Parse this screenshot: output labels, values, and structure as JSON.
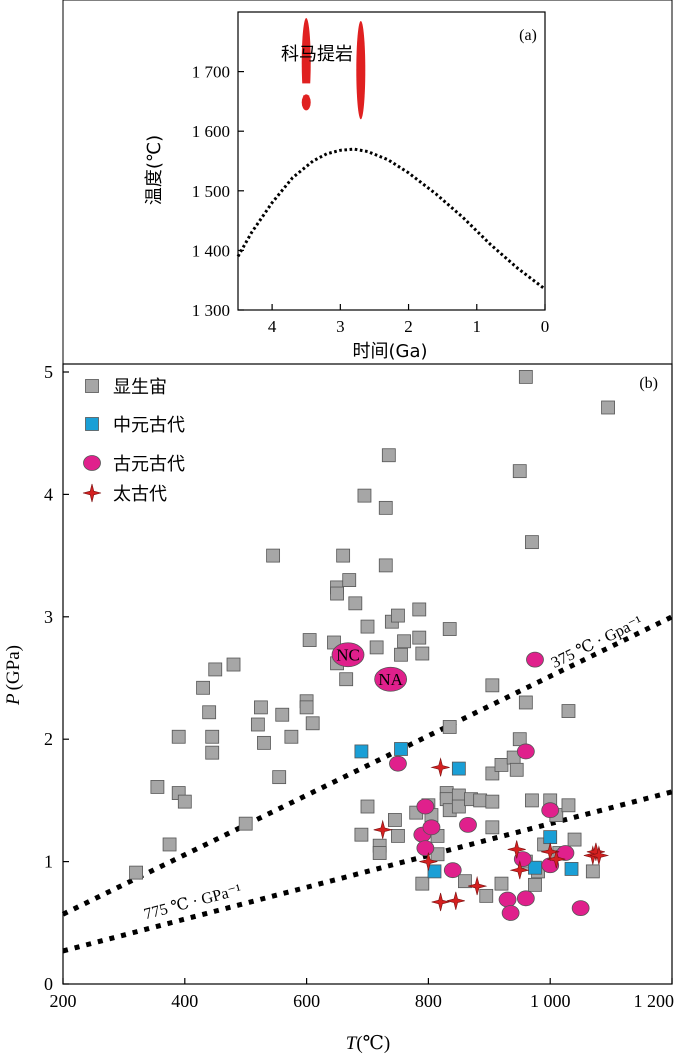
{
  "chart_data": [
    {
      "panel": "(a)",
      "type": "line",
      "annotation": "科马提岩",
      "xlabel": "时间(Ga)",
      "ylabel": "温度(℃)",
      "xlim": [
        4.5,
        0
      ],
      "ylim": [
        1300,
        1800
      ],
      "x_ticks": [
        4,
        3,
        2,
        1,
        0
      ],
      "x_tick_labels": [
        "4",
        "3",
        "2",
        "1",
        "0"
      ],
      "y_ticks": [
        1300,
        1400,
        1500,
        1600,
        1700
      ],
      "y_tick_labels": [
        "1 300",
        "1 400",
        "1 500",
        "1 600",
        "1 700"
      ],
      "series": [
        {
          "style": "dotted",
          "color": "#000000",
          "x": [
            4.5,
            4.3,
            4.0,
            3.7,
            3.4,
            3.2,
            3.0,
            2.8,
            2.6,
            2.3,
            2.0,
            1.6,
            1.2,
            0.8,
            0.4,
            0.0
          ],
          "y": [
            1390,
            1430,
            1480,
            1522,
            1550,
            1562,
            1568,
            1570,
            1566,
            1552,
            1530,
            1495,
            1455,
            1410,
            1370,
            1335
          ]
        }
      ],
      "komatiite_ranges": [
        {
          "age": 3.5,
          "t_low": 1640,
          "t_high": 1790,
          "dot_t": 1650
        },
        {
          "age": 2.7,
          "t_low": 1620,
          "t_high": 1785
        }
      ],
      "komatiite_color": "#e02020"
    },
    {
      "panel": "(b)",
      "type": "scatter",
      "xlabel_italic": "T",
      "xlabel_rest": "(℃)",
      "ylabel_italic": "P",
      "ylabel_rest": "(GPa)",
      "xlim": [
        200,
        1200
      ],
      "ylim": [
        0,
        5
      ],
      "x_ticks": [
        200,
        400,
        600,
        800,
        1000,
        1200
      ],
      "x_tick_labels": [
        "200",
        "400",
        "600",
        "800",
        "1 000",
        "1 200"
      ],
      "y_ticks": [
        0,
        1,
        2,
        3,
        4,
        5
      ],
      "y_tick_labels": [
        "0",
        "1",
        "2",
        "3",
        "4",
        "5"
      ],
      "legend": [
        {
          "label": "显生宙",
          "marker": "square",
          "color": "#a6a6a6"
        },
        {
          "label": "中元古代",
          "marker": "square",
          "color": "#1a9fd6"
        },
        {
          "label": "古元古代",
          "marker": "circle",
          "color": "#e0208c"
        },
        {
          "label": "太古代",
          "marker": "star",
          "color": "#d42020"
        }
      ],
      "gradient_lines": [
        {
          "label": "375 ℃ · Gpa⁻¹",
          "x": [
            200,
            1200
          ],
          "y": [
            0.57,
            3.0
          ]
        },
        {
          "label": "775 ℃ · GPa⁻¹",
          "x": [
            200,
            1200
          ],
          "y": [
            0.27,
            1.57
          ]
        }
      ],
      "labeled_points": [
        {
          "label": "NC",
          "x": 668,
          "y": 2.69
        },
        {
          "label": "NA",
          "x": 738,
          "y": 2.49
        }
      ],
      "series": [
        {
          "name": "显生宙",
          "marker": "square",
          "color": "#a6a6a6",
          "points": [
            [
              320,
              0.91
            ],
            [
              355,
              1.61
            ],
            [
              375,
              1.14
            ],
            [
              390,
              2.02
            ],
            [
              390,
              1.56
            ],
            [
              400,
              1.49
            ],
            [
              430,
              2.42
            ],
            [
              440,
              2.22
            ],
            [
              445,
              2.02
            ],
            [
              445,
              1.89
            ],
            [
              450,
              2.57
            ],
            [
              480,
              2.61
            ],
            [
              500,
              1.31
            ],
            [
              520,
              2.12
            ],
            [
              525,
              2.26
            ],
            [
              530,
              1.97
            ],
            [
              545,
              3.5
            ],
            [
              555,
              1.69
            ],
            [
              560,
              2.2
            ],
            [
              575,
              2.02
            ],
            [
              600,
              2.31
            ],
            [
              600,
              2.26
            ],
            [
              605,
              2.81
            ],
            [
              610,
              2.13
            ],
            [
              645,
              2.79
            ],
            [
              650,
              3.24
            ],
            [
              650,
              3.19
            ],
            [
              650,
              2.62
            ],
            [
              660,
              3.5
            ],
            [
              665,
              2.49
            ],
            [
              670,
              3.3
            ],
            [
              680,
              3.11
            ],
            [
              695,
              3.99
            ],
            [
              700,
              2.92
            ],
            [
              715,
              2.75
            ],
            [
              730,
              3.89
            ],
            [
              730,
              3.42
            ],
            [
              735,
              4.32
            ],
            [
              740,
              2.96
            ],
            [
              750,
              3.01
            ],
            [
              755,
              2.69
            ],
            [
              760,
              2.8
            ],
            [
              785,
              3.06
            ],
            [
              785,
              2.83
            ],
            [
              790,
              2.7
            ],
            [
              835,
              2.9
            ],
            [
              835,
              2.1
            ],
            [
              905,
              2.44
            ],
            [
              950,
              4.19
            ],
            [
              960,
              4.96
            ],
            [
              960,
              2.3
            ],
            [
              970,
              3.61
            ],
            [
              1030,
              2.23
            ],
            [
              1095,
              4.71
            ],
            [
              690,
              1.22
            ],
            [
              700,
              1.45
            ],
            [
              720,
              1.13
            ],
            [
              720,
              1.07
            ],
            [
              745,
              1.34
            ],
            [
              750,
              1.21
            ],
            [
              780,
              1.4
            ],
            [
              790,
              0.82
            ],
            [
              800,
              1.46
            ],
            [
              805,
              1.38
            ],
            [
              815,
              1.21
            ],
            [
              815,
              1.06
            ],
            [
              830,
              1.56
            ],
            [
              830,
              1.51
            ],
            [
              835,
              1.42
            ],
            [
              850,
              1.54
            ],
            [
              850,
              1.45
            ],
            [
              860,
              0.84
            ],
            [
              870,
              1.51
            ],
            [
              885,
              1.5
            ],
            [
              895,
              0.72
            ],
            [
              905,
              1.72
            ],
            [
              905,
              1.49
            ],
            [
              905,
              1.28
            ],
            [
              920,
              0.82
            ],
            [
              920,
              1.79
            ],
            [
              940,
              1.85
            ],
            [
              945,
              1.75
            ],
            [
              950,
              2.0
            ],
            [
              960,
              1.0
            ],
            [
              970,
              1.5
            ],
            [
              975,
              0.81
            ],
            [
              980,
              0.92
            ],
            [
              990,
              1.14
            ],
            [
              1000,
              1.5
            ],
            [
              1010,
              1.38
            ],
            [
              1015,
              1.07
            ],
            [
              1030,
              1.46
            ],
            [
              1040,
              1.18
            ],
            [
              1070,
              0.92
            ]
          ]
        },
        {
          "name": "中元古代",
          "marker": "square",
          "color": "#1a9fd6",
          "points": [
            [
              690,
              1.9
            ],
            [
              755,
              1.92
            ],
            [
              850,
              1.76
            ],
            [
              810,
              0.92
            ],
            [
              975,
              0.95
            ],
            [
              1000,
              1.2
            ],
            [
              1035,
              0.94
            ]
          ]
        },
        {
          "name": "古元古代",
          "marker": "circle",
          "color": "#e0208c",
          "points": [
            [
              750,
              1.8
            ],
            [
              795,
              1.45
            ],
            [
              790,
              1.22
            ],
            [
              795,
              1.11
            ],
            [
              805,
              1.28
            ],
            [
              840,
              0.93
            ],
            [
              865,
              1.3
            ],
            [
              930,
              0.69
            ],
            [
              935,
              0.58
            ],
            [
              955,
              1.02
            ],
            [
              960,
              0.7
            ],
            [
              960,
              1.9
            ],
            [
              1000,
              0.97
            ],
            [
              1000,
              1.42
            ],
            [
              1025,
              1.07
            ],
            [
              1050,
              0.62
            ],
            [
              975,
              2.65
            ]
          ]
        },
        {
          "name": "太古代",
          "marker": "star",
          "color": "#d42020",
          "points": [
            [
              725,
              1.26
            ],
            [
              800,
              1.0
            ],
            [
              820,
              0.67
            ],
            [
              820,
              1.77
            ],
            [
              845,
              0.68
            ],
            [
              880,
              0.8
            ],
            [
              945,
              1.1
            ],
            [
              950,
              0.93
            ],
            [
              1000,
              1.08
            ],
            [
              1010,
              1.02
            ],
            [
              1070,
              1.05
            ],
            [
              1075,
              1.08
            ],
            [
              1080,
              1.05
            ]
          ]
        }
      ]
    }
  ]
}
